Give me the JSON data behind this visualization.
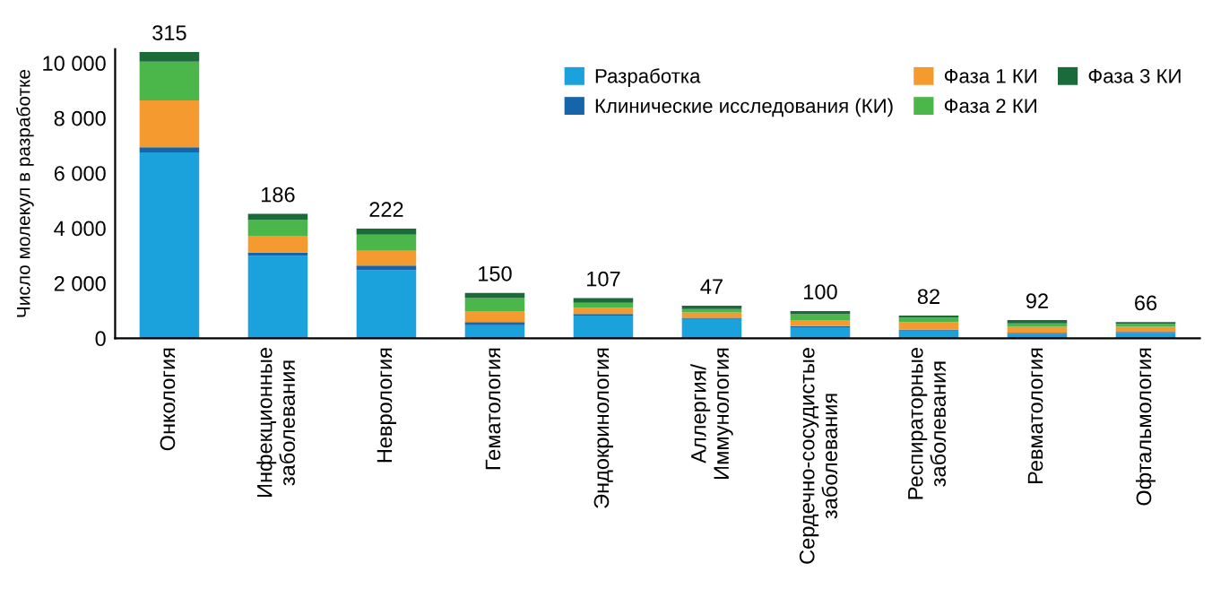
{
  "chart_data": {
    "type": "bar",
    "stacked": true,
    "ylabel": "Число молекул в разработке",
    "categories": [
      "Онкология",
      "Инфекционные\nзаболевания",
      "Неврология",
      "Гематология",
      "Эндокринология",
      "Аллергия/\nИммунология",
      "Сердечно-сосудистые\nзаболевания",
      "Респираторные\nзаболевания",
      "Ревматология",
      "Офтальмология"
    ],
    "series": [
      {
        "name": "Разработка",
        "color": "#1ba1dc",
        "values": [
          6750,
          2990,
          2470,
          470,
          820,
          700,
          400,
          280,
          160,
          200
        ]
      },
      {
        "name": "Клинические исследования (КИ)",
        "color": "#1565a8",
        "values": [
          190,
          120,
          170,
          120,
          60,
          40,
          40,
          30,
          40,
          30
        ]
      },
      {
        "name": "Фаза 1 КИ",
        "color": "#f59a2f",
        "values": [
          1700,
          610,
          540,
          400,
          230,
          200,
          220,
          280,
          220,
          190
        ]
      },
      {
        "name": "Фаза 2 КИ",
        "color": "#4bb649",
        "values": [
          1410,
          590,
          580,
          470,
          180,
          120,
          210,
          160,
          120,
          100
        ]
      },
      {
        "name": "Фаза 3 КИ",
        "color": "#1a6b3a",
        "values": [
          350,
          210,
          220,
          190,
          170,
          120,
          120,
          70,
          120,
          70
        ]
      }
    ],
    "ylim": [
      0,
      10500
    ],
    "yticks": [
      0,
      {
        "value": 2000,
        "label": "2 000"
      },
      {
        "value": 4000,
        "label": "4 000"
      },
      {
        "value": 6000,
        "label": "6 000"
      },
      {
        "value": 8000,
        "label": "8 000"
      },
      {
        "value": 10000,
        "label": "10 000"
      }
    ],
    "annotations": [
      {
        "text": "315",
        "x": "Онкология",
        "y": 10400
      },
      {
        "text": "186",
        "x": "Инфекционные\nзаболевания",
        "y": 4520
      },
      {
        "text": "222",
        "x": "Неврология",
        "y": 3980
      },
      {
        "text": "150",
        "x": "Гематология",
        "y": 1650
      },
      {
        "text": "107",
        "x": "Эндокринология",
        "y": 1460
      },
      {
        "text": "47",
        "x": "Аллергия/\nИммунология",
        "y": 1180
      },
      {
        "text": "100",
        "x": "Сердечно-сосудистые\nзаболевания",
        "y": 990
      },
      {
        "text": "82",
        "x": "Респираторные\nзаболевания",
        "y": 820
      },
      {
        "text": "92",
        "x": "Ревматология",
        "y": 660
      },
      {
        "text": "66",
        "x": "Офтальмология",
        "y": 590
      }
    ],
    "legend": "top right",
    "grid": false
  }
}
